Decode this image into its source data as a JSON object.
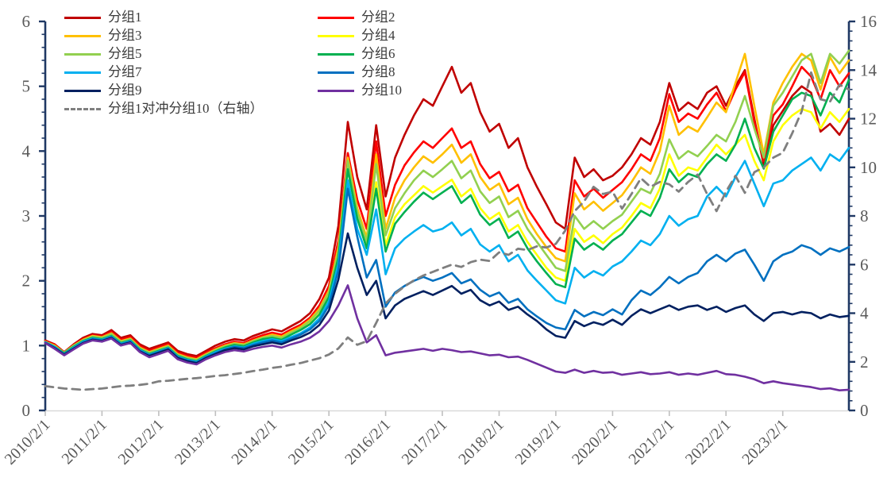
{
  "chart_data": {
    "type": "line",
    "title": "",
    "x_axis": {
      "tick_labels": [
        "2010/2/1",
        "2011/2/1",
        "2012/2/1",
        "2013/2/1",
        "2014/2/1",
        "2015/2/1",
        "2016/2/1",
        "2017/2/1",
        "2018/2/1",
        "2019/2/1",
        "2020/2/1",
        "2021/2/1",
        "2022/2/1",
        "2023/2/1"
      ],
      "tick_indices": [
        0,
        6,
        12,
        18,
        24,
        30,
        36,
        42,
        48,
        54,
        60,
        66,
        72,
        78
      ],
      "points_start": "2010/2",
      "points_step_months": 2,
      "n_points": 86
    },
    "left_axis": {
      "min": 0,
      "max": 6,
      "major_step": 1,
      "minor_step": 0.2,
      "tick_labels": [
        "0",
        "1",
        "2",
        "3",
        "4",
        "5",
        "6"
      ]
    },
    "right_axis": {
      "min": 0,
      "max": 16,
      "major_step": 2,
      "minor_step": 0.4,
      "tick_labels": [
        "0",
        "2",
        "4",
        "6",
        "8",
        "10",
        "12",
        "14",
        "16"
      ]
    },
    "grid": false,
    "legend_position": "top-left-two-columns",
    "legend_columns": {
      "col1": [
        0,
        2,
        4,
        6,
        8,
        10
      ],
      "col2": [
        1,
        3,
        5,
        7,
        9
      ]
    },
    "series": [
      {
        "name": "分组1",
        "color": "#C00000",
        "axis": "left",
        "dash": false,
        "values": [
          1.08,
          1.02,
          0.9,
          1.02,
          1.12,
          1.18,
          1.16,
          1.24,
          1.12,
          1.16,
          1.02,
          0.95,
          1.0,
          1.05,
          0.92,
          0.87,
          0.84,
          0.92,
          1.0,
          1.06,
          1.1,
          1.08,
          1.15,
          1.2,
          1.25,
          1.22,
          1.3,
          1.38,
          1.5,
          1.72,
          2.05,
          2.85,
          4.45,
          3.6,
          3.1,
          4.4,
          3.3,
          3.9,
          4.25,
          4.55,
          4.8,
          4.7,
          5.0,
          5.3,
          4.9,
          5.05,
          4.6,
          4.3,
          4.42,
          4.05,
          4.2,
          3.75,
          3.45,
          3.18,
          2.9,
          2.8,
          3.9,
          3.6,
          3.72,
          3.55,
          3.62,
          3.75,
          3.95,
          4.2,
          4.1,
          4.45,
          5.05,
          4.62,
          4.75,
          4.65,
          4.9,
          5.0,
          4.7,
          5.0,
          5.25,
          4.5,
          3.78,
          4.4,
          4.62,
          4.85,
          5.0,
          4.9,
          4.3,
          4.42,
          4.25,
          4.5
        ]
      },
      {
        "name": "分组2",
        "color": "#FF0000",
        "axis": "left",
        "dash": false,
        "values": [
          1.07,
          1.01,
          0.89,
          1.01,
          1.1,
          1.16,
          1.14,
          1.21,
          1.09,
          1.13,
          0.99,
          0.92,
          0.97,
          1.02,
          0.89,
          0.84,
          0.81,
          0.89,
          0.96,
          1.02,
          1.06,
          1.04,
          1.11,
          1.16,
          1.2,
          1.17,
          1.25,
          1.32,
          1.43,
          1.62,
          1.92,
          2.62,
          3.97,
          3.25,
          2.8,
          4.15,
          3.0,
          3.48,
          3.78,
          3.98,
          4.15,
          4.05,
          4.2,
          4.35,
          4.05,
          4.15,
          3.8,
          3.58,
          3.68,
          3.38,
          3.48,
          3.12,
          2.9,
          2.68,
          2.5,
          2.45,
          3.55,
          3.3,
          3.42,
          3.28,
          3.4,
          3.52,
          3.72,
          3.95,
          3.85,
          4.2,
          4.88,
          4.45,
          4.58,
          4.5,
          4.72,
          4.9,
          4.62,
          4.95,
          5.22,
          4.45,
          3.85,
          4.55,
          4.72,
          5.0,
          5.3,
          5.15,
          4.8,
          5.25,
          5.0,
          5.2
        ]
      },
      {
        "name": "分组3",
        "color": "#FFC000",
        "axis": "left",
        "dash": false,
        "values": [
          1.06,
          1.0,
          0.89,
          1.0,
          1.09,
          1.15,
          1.13,
          1.19,
          1.07,
          1.11,
          0.97,
          0.9,
          0.95,
          1.0,
          0.87,
          0.82,
          0.79,
          0.87,
          0.94,
          1.0,
          1.04,
          1.02,
          1.08,
          1.13,
          1.17,
          1.14,
          1.22,
          1.29,
          1.4,
          1.57,
          1.85,
          2.52,
          3.9,
          3.12,
          2.66,
          3.95,
          2.8,
          3.28,
          3.55,
          3.75,
          3.92,
          3.82,
          3.95,
          4.1,
          3.82,
          3.95,
          3.6,
          3.4,
          3.5,
          3.18,
          3.28,
          2.95,
          2.72,
          2.52,
          2.35,
          2.3,
          3.35,
          3.1,
          3.22,
          3.08,
          3.2,
          3.32,
          3.52,
          3.75,
          3.65,
          4.0,
          4.7,
          4.25,
          4.38,
          4.3,
          4.52,
          4.75,
          4.6,
          5.05,
          5.5,
          4.7,
          3.95,
          4.75,
          5.05,
          5.3,
          5.5,
          5.4,
          4.95,
          5.45,
          5.2,
          5.4
        ]
      },
      {
        "name": "分组4",
        "color": "#FFFF00",
        "axis": "left",
        "dash": false,
        "values": [
          1.05,
          0.99,
          0.88,
          0.99,
          1.08,
          1.13,
          1.11,
          1.17,
          1.05,
          1.09,
          0.95,
          0.88,
          0.93,
          0.98,
          0.85,
          0.8,
          0.77,
          0.85,
          0.92,
          0.98,
          1.02,
          1.0,
          1.06,
          1.11,
          1.14,
          1.11,
          1.19,
          1.26,
          1.36,
          1.52,
          1.78,
          2.42,
          3.8,
          3.02,
          2.56,
          3.52,
          2.55,
          2.98,
          3.18,
          3.32,
          3.46,
          3.36,
          3.46,
          3.56,
          3.3,
          3.42,
          3.12,
          2.95,
          3.05,
          2.76,
          2.86,
          2.6,
          2.4,
          2.2,
          2.05,
          2.0,
          2.8,
          2.6,
          2.7,
          2.58,
          2.72,
          2.82,
          3.0,
          3.2,
          3.12,
          3.42,
          3.95,
          3.62,
          3.75,
          3.7,
          3.9,
          4.1,
          3.95,
          4.1,
          4.25,
          3.85,
          3.55,
          4.15,
          4.4,
          4.55,
          4.65,
          4.6,
          4.35,
          4.6,
          4.45,
          4.65
        ]
      },
      {
        "name": "分组5",
        "color": "#92D050",
        "axis": "left",
        "dash": false,
        "values": [
          1.06,
          0.99,
          0.89,
          1.0,
          1.08,
          1.14,
          1.12,
          1.18,
          1.06,
          1.1,
          0.96,
          0.89,
          0.94,
          0.99,
          0.86,
          0.81,
          0.78,
          0.86,
          0.93,
          0.99,
          1.03,
          1.01,
          1.07,
          1.12,
          1.15,
          1.12,
          1.2,
          1.27,
          1.38,
          1.54,
          1.82,
          2.46,
          3.85,
          3.06,
          2.6,
          3.8,
          2.7,
          3.12,
          3.35,
          3.55,
          3.7,
          3.6,
          3.72,
          3.85,
          3.58,
          3.7,
          3.38,
          3.2,
          3.3,
          2.98,
          3.08,
          2.8,
          2.6,
          2.4,
          2.2,
          2.15,
          3.0,
          2.8,
          2.92,
          2.8,
          2.92,
          3.02,
          3.22,
          3.42,
          3.35,
          3.65,
          4.18,
          3.88,
          4.0,
          3.92,
          4.08,
          4.25,
          4.15,
          4.45,
          4.85,
          4.35,
          3.9,
          4.7,
          4.9,
          5.15,
          5.4,
          5.5,
          5.05,
          5.5,
          5.35,
          5.55
        ]
      },
      {
        "name": "分组6",
        "color": "#00B050",
        "axis": "left",
        "dash": false,
        "values": [
          1.05,
          0.98,
          0.88,
          0.98,
          1.07,
          1.12,
          1.1,
          1.15,
          1.04,
          1.08,
          0.94,
          0.87,
          0.92,
          0.97,
          0.84,
          0.79,
          0.76,
          0.84,
          0.91,
          0.97,
          1.01,
          0.99,
          1.05,
          1.1,
          1.12,
          1.09,
          1.17,
          1.24,
          1.33,
          1.48,
          1.75,
          2.36,
          3.72,
          2.96,
          2.5,
          3.42,
          2.45,
          2.88,
          3.06,
          3.22,
          3.36,
          3.26,
          3.36,
          3.46,
          3.2,
          3.32,
          3.02,
          2.86,
          2.96,
          2.66,
          2.76,
          2.5,
          2.3,
          2.12,
          1.95,
          1.9,
          2.65,
          2.48,
          2.58,
          2.48,
          2.62,
          2.72,
          2.9,
          3.08,
          3.0,
          3.28,
          3.72,
          3.52,
          3.65,
          3.6,
          3.8,
          3.95,
          3.85,
          4.1,
          4.5,
          4.05,
          3.73,
          4.3,
          4.55,
          4.8,
          4.9,
          4.85,
          4.55,
          4.9,
          4.75,
          5.1
        ]
      },
      {
        "name": "分组7",
        "color": "#00B0F0",
        "axis": "left",
        "dash": false,
        "values": [
          1.05,
          0.98,
          0.87,
          0.97,
          1.06,
          1.11,
          1.09,
          1.14,
          1.03,
          1.07,
          0.93,
          0.86,
          0.91,
          0.96,
          0.83,
          0.78,
          0.75,
          0.83,
          0.9,
          0.95,
          0.99,
          0.97,
          1.03,
          1.07,
          1.1,
          1.07,
          1.13,
          1.19,
          1.28,
          1.42,
          1.68,
          2.26,
          3.55,
          2.8,
          2.4,
          3.1,
          2.1,
          2.5,
          2.65,
          2.76,
          2.86,
          2.76,
          2.8,
          2.9,
          2.7,
          2.8,
          2.56,
          2.45,
          2.55,
          2.3,
          2.4,
          2.16,
          2.0,
          1.85,
          1.7,
          1.65,
          2.2,
          2.05,
          2.15,
          2.08,
          2.22,
          2.3,
          2.45,
          2.62,
          2.55,
          2.72,
          3.0,
          2.85,
          2.95,
          3.0,
          3.3,
          3.45,
          3.3,
          3.6,
          3.85,
          3.5,
          3.15,
          3.5,
          3.55,
          3.7,
          3.8,
          3.9,
          3.7,
          3.95,
          3.85,
          4.05
        ]
      },
      {
        "name": "分组8",
        "color": "#0070C0",
        "axis": "left",
        "dash": false,
        "values": [
          1.05,
          0.97,
          0.87,
          0.96,
          1.05,
          1.1,
          1.08,
          1.13,
          1.02,
          1.06,
          0.92,
          0.85,
          0.9,
          0.95,
          0.82,
          0.77,
          0.74,
          0.82,
          0.88,
          0.94,
          0.98,
          0.96,
          1.01,
          1.05,
          1.08,
          1.05,
          1.11,
          1.17,
          1.25,
          1.38,
          1.62,
          2.16,
          3.42,
          2.68,
          2.05,
          2.32,
          1.6,
          1.82,
          1.92,
          2.0,
          2.06,
          2.0,
          2.05,
          2.12,
          1.96,
          2.02,
          1.86,
          1.76,
          1.82,
          1.66,
          1.72,
          1.56,
          1.45,
          1.35,
          1.28,
          1.25,
          1.55,
          1.45,
          1.52,
          1.47,
          1.56,
          1.48,
          1.7,
          1.85,
          1.78,
          1.9,
          2.06,
          1.96,
          2.06,
          2.12,
          2.3,
          2.4,
          2.3,
          2.42,
          2.48,
          2.25,
          2.0,
          2.3,
          2.4,
          2.45,
          2.55,
          2.5,
          2.4,
          2.5,
          2.45,
          2.52
        ]
      },
      {
        "name": "分组9",
        "color": "#002060",
        "axis": "left",
        "dash": false,
        "values": [
          1.04,
          0.96,
          0.86,
          0.95,
          1.04,
          1.09,
          1.07,
          1.12,
          1.01,
          1.05,
          0.91,
          0.84,
          0.89,
          0.94,
          0.81,
          0.76,
          0.73,
          0.81,
          0.87,
          0.93,
          0.96,
          0.94,
          0.99,
          1.02,
          1.05,
          1.02,
          1.08,
          1.13,
          1.2,
          1.32,
          1.54,
          2.02,
          2.73,
          2.2,
          1.78,
          2.0,
          1.42,
          1.62,
          1.72,
          1.78,
          1.84,
          1.78,
          1.85,
          1.92,
          1.8,
          1.86,
          1.7,
          1.62,
          1.68,
          1.55,
          1.6,
          1.48,
          1.38,
          1.25,
          1.15,
          1.12,
          1.38,
          1.3,
          1.36,
          1.32,
          1.4,
          1.32,
          1.46,
          1.56,
          1.5,
          1.56,
          1.62,
          1.55,
          1.6,
          1.62,
          1.55,
          1.6,
          1.52,
          1.58,
          1.62,
          1.48,
          1.38,
          1.5,
          1.52,
          1.48,
          1.52,
          1.5,
          1.42,
          1.48,
          1.44,
          1.46
        ]
      },
      {
        "name": "分组10",
        "color": "#7030A0",
        "axis": "left",
        "dash": false,
        "values": [
          1.04,
          0.95,
          0.85,
          0.94,
          1.03,
          1.08,
          1.06,
          1.11,
          1.0,
          1.04,
          0.9,
          0.82,
          0.87,
          0.92,
          0.79,
          0.74,
          0.71,
          0.79,
          0.85,
          0.9,
          0.93,
          0.91,
          0.95,
          0.98,
          1.0,
          0.97,
          1.02,
          1.06,
          1.12,
          1.22,
          1.38,
          1.62,
          1.93,
          1.42,
          1.05,
          1.16,
          0.85,
          0.89,
          0.91,
          0.93,
          0.95,
          0.92,
          0.95,
          0.93,
          0.9,
          0.91,
          0.88,
          0.85,
          0.86,
          0.82,
          0.83,
          0.78,
          0.72,
          0.66,
          0.6,
          0.58,
          0.63,
          0.58,
          0.61,
          0.58,
          0.59,
          0.55,
          0.57,
          0.59,
          0.56,
          0.57,
          0.59,
          0.55,
          0.57,
          0.55,
          0.58,
          0.61,
          0.56,
          0.55,
          0.52,
          0.48,
          0.42,
          0.45,
          0.42,
          0.4,
          0.38,
          0.36,
          0.33,
          0.34,
          0.31,
          0.32
        ]
      },
      {
        "name": "分组1对冲分组10（右轴）",
        "color": "#7F7F7F",
        "axis": "right",
        "dash": true,
        "values": [
          1.0,
          0.95,
          0.9,
          0.88,
          0.85,
          0.88,
          0.9,
          0.95,
          1.0,
          1.02,
          1.05,
          1.1,
          1.2,
          1.22,
          1.26,
          1.3,
          1.33,
          1.37,
          1.42,
          1.45,
          1.5,
          1.55,
          1.62,
          1.68,
          1.75,
          1.8,
          1.88,
          1.95,
          2.05,
          2.15,
          2.3,
          2.55,
          3.0,
          2.7,
          2.85,
          3.6,
          4.4,
          4.8,
          5.1,
          5.35,
          5.55,
          5.7,
          5.85,
          6.0,
          5.9,
          6.1,
          6.2,
          6.15,
          6.5,
          6.4,
          6.65,
          6.6,
          6.75,
          6.7,
          6.85,
          7.4,
          8.2,
          8.6,
          9.2,
          8.9,
          9.0,
          8.3,
          8.9,
          9.55,
          9.2,
          9.4,
          9.3,
          9.0,
          9.4,
          9.7,
          8.9,
          8.2,
          9.0,
          9.65,
          8.95,
          9.8,
          10.0,
          10.4,
          10.6,
          11.4,
          12.3,
          13.9,
          12.8,
          12.7,
          13.4,
          13.2
        ]
      }
    ]
  },
  "style": {
    "spine_color": "#1F3864",
    "bottom_line_color": "#D9D9D9",
    "bottom_tick_color": "#BFBFBF",
    "tick_label_color": "#595959",
    "legend_text_color": "#3b3b3b",
    "background": "#FFFFFF"
  }
}
